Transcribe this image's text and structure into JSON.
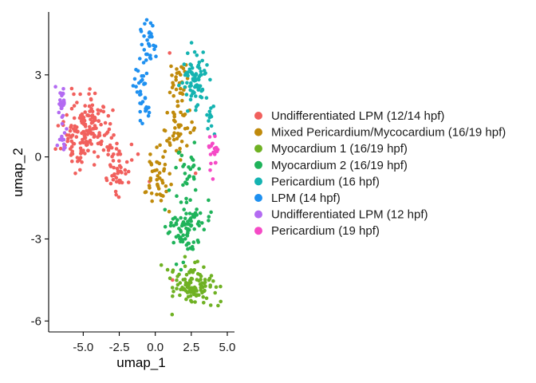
{
  "chart_data": {
    "type": "scatter",
    "xlabel": "umap_1",
    "ylabel": "umap_2",
    "xlim": [
      -7.4,
      5.5
    ],
    "ylim": [
      -6.4,
      5.3
    ],
    "x_ticks": [
      -5.0,
      -2.5,
      0.0,
      2.5,
      5.0
    ],
    "x_tick_labels": [
      "-5.0",
      "-2.5",
      "0.0",
      "2.5",
      "5.0"
    ],
    "y_ticks": [
      -6,
      -3,
      0,
      3
    ],
    "y_tick_labels": [
      "-6",
      "-3",
      "0",
      "3"
    ],
    "grid": false,
    "legend_position": "right",
    "series": [
      {
        "name": "Undifferentiated LPM (12/14 hpf)",
        "color": "#F1605D",
        "clusters": [
          {
            "cx": -4.6,
            "cy": 1.0,
            "sx": 1.1,
            "sy": 0.8,
            "n": 150
          },
          {
            "cx": -5.3,
            "cy": 0.2,
            "sx": 0.7,
            "sy": 0.5,
            "n": 20
          },
          {
            "cx": -2.5,
            "cy": -0.4,
            "sx": 0.5,
            "sy": 0.6,
            "n": 42
          }
        ],
        "extra_points": [
          [
            -0.4,
            -0.9
          ],
          [
            -1.2,
            0.1
          ],
          [
            1.0,
            3.8
          ],
          [
            2.8,
            -0.6
          ],
          [
            1.2,
            -4.5
          ],
          [
            -5.8,
            2.5
          ],
          [
            -4.6,
            2.3
          ]
        ]
      },
      {
        "name": "Mixed Pericardium/Mycocardium (16/19 hpf)",
        "color": "#C08A0B",
        "clusters": [
          {
            "cx": 1.7,
            "cy": 2.3,
            "sx": 0.5,
            "sy": 0.8,
            "n": 45
          },
          {
            "cx": 1.3,
            "cy": 0.7,
            "sx": 0.6,
            "sy": 0.5,
            "n": 30
          },
          {
            "cx": 0.1,
            "cy": -0.9,
            "sx": 0.6,
            "sy": 0.7,
            "n": 42
          }
        ]
      },
      {
        "name": "Myocardium 1 (16/19 hpf)",
        "color": "#6FB123",
        "clusters": [
          {
            "cx": 2.6,
            "cy": -4.7,
            "sx": 1.0,
            "sy": 0.5,
            "n": 110
          }
        ]
      },
      {
        "name": "Myocardium 2 (16/19 hpf)",
        "color": "#1FB35A",
        "clusters": [
          {
            "cx": 2.2,
            "cy": -2.7,
            "sx": 0.8,
            "sy": 0.7,
            "n": 90
          },
          {
            "cx": 2.2,
            "cy": -0.4,
            "sx": 0.6,
            "sy": 0.5,
            "n": 25
          }
        ]
      },
      {
        "name": "Pericardium (16 hpf)",
        "color": "#14B3B1",
        "clusters": [
          {
            "cx": 2.8,
            "cy": 2.8,
            "sx": 0.6,
            "sy": 0.7,
            "n": 80
          },
          {
            "cx": 3.8,
            "cy": 1.2,
            "sx": 0.3,
            "sy": 0.4,
            "n": 10
          }
        ]
      },
      {
        "name": "LPM (14 hpf)",
        "color": "#1E90F0",
        "clusters": [
          {
            "cx": -0.5,
            "cy": 4.0,
            "sx": 0.3,
            "sy": 0.6,
            "n": 30
          },
          {
            "cx": -0.9,
            "cy": 2.6,
            "sx": 0.4,
            "sy": 0.5,
            "n": 22
          },
          {
            "cx": -0.6,
            "cy": 1.6,
            "sx": 0.4,
            "sy": 0.3,
            "n": 12
          }
        ]
      },
      {
        "name": "Undifferentiated LPM (12 hpf)",
        "color": "#B36BF2",
        "clusters": [
          {
            "cx": -6.5,
            "cy": 1.9,
            "sx": 0.25,
            "sy": 0.45,
            "n": 25
          },
          {
            "cx": -6.4,
            "cy": 0.6,
            "sx": 0.25,
            "sy": 0.3,
            "n": 12
          }
        ]
      },
      {
        "name": "Pericardium (19 hpf)",
        "color": "#F54AC6",
        "clusters": [
          {
            "cx": 4.0,
            "cy": 0.1,
            "sx": 0.25,
            "sy": 0.5,
            "n": 22
          }
        ]
      }
    ]
  }
}
